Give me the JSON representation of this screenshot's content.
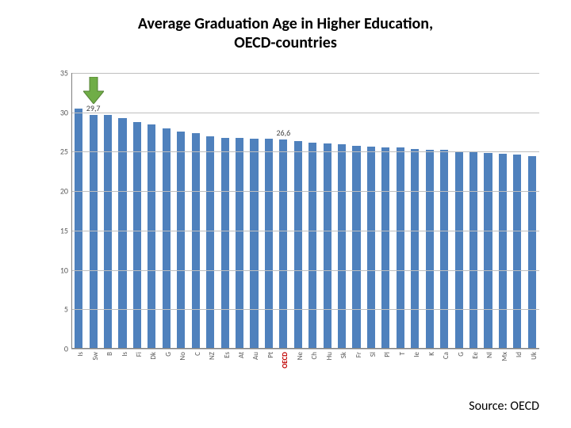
{
  "title_line1": "Average Graduation Age in Higher Education,",
  "title_line2": "OECD-countries",
  "title_fontsize": 20,
  "source_label": "Source: OECD",
  "chart": {
    "type": "bar",
    "ylim": [
      0,
      35
    ],
    "ytick_step": 5,
    "background_color": "#ffffff",
    "grid_color": "#bfbfbf",
    "axis_color": "#808080",
    "axis_label_color": "#595959",
    "bar_width_ratio": 0.55,
    "categories": [
      "Is",
      "Sw",
      "B",
      "Is",
      "Fi",
      "Dk",
      "G",
      "No",
      "C",
      "NZ",
      "Es",
      "At",
      "Au",
      "Pt",
      "OECD",
      "Ne",
      "Ch",
      "Hu",
      "Sk",
      "Fr",
      "Sl",
      "Pl",
      "T",
      "Ie",
      "K",
      "Ca",
      "G",
      "Ee",
      "Nl",
      "Mx",
      "Id",
      "Uk"
    ],
    "values": [
      30.5,
      29.7,
      29.7,
      29.3,
      28.8,
      28.5,
      28.0,
      27.6,
      27.4,
      27.0,
      26.8,
      26.8,
      26.7,
      26.7,
      26.6,
      26.4,
      26.2,
      26.1,
      25.9,
      25.7,
      25.6,
      25.5,
      25.5,
      25.3,
      25.2,
      25.2,
      25.0,
      24.9,
      24.8,
      24.7,
      24.6,
      24.4
    ],
    "bar_color": "#4f81bd",
    "highlight_category_index": 14,
    "highlight_label_color": "#c00000",
    "data_labels": [
      {
        "index": 1,
        "text": "29,7"
      },
      {
        "index": 14,
        "text": "26,6"
      }
    ],
    "data_label_color": "#404040",
    "arrow": {
      "target_index": 1,
      "color": "#70ad47",
      "border_color": "#548235"
    }
  }
}
